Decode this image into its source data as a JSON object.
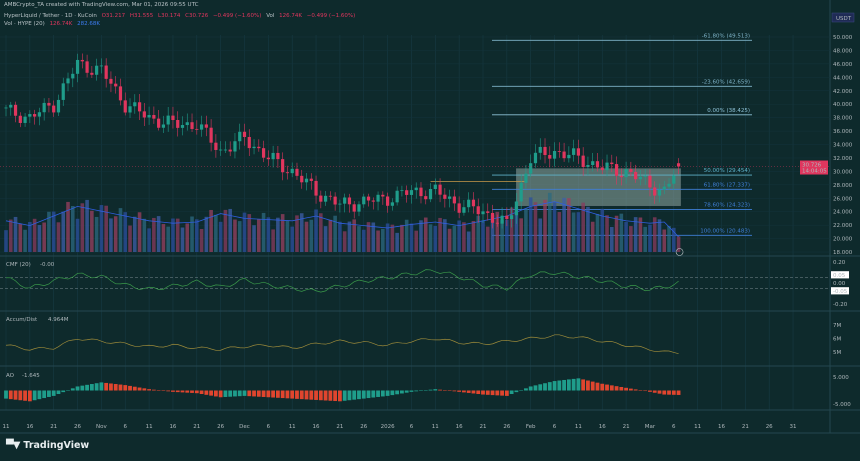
{
  "header": {
    "credit": "AMBCrypto_TA created with TradingView.com, Mar 01, 2026 09:55 UTC",
    "symbol": "HyperLiquid / Tether · 1D · KuCoin",
    "open": "O31.217",
    "high": "H31.555",
    "low": "L30.174",
    "close": "C30.726",
    "change": "−0.499 (−1.60%)",
    "vol_label": "Vol",
    "vol_value": "126.74K",
    "vol_change": "−0.499 (−1.60%)",
    "vol_ma_label": "Vol · HYPE (20)",
    "vol_ma_value1": "126.74K",
    "vol_ma_value2": "282.68K"
  },
  "currency": "USDT",
  "last_price": {
    "value": "30.726",
    "countdown": "14:04:05",
    "color": "#e0365e"
  },
  "colors": {
    "up": "#1f9d8b",
    "down": "#e0365e",
    "background": "#0e2a2c",
    "volume_ma": "#2f5ee0",
    "fib_box": "#8fa7a3"
  },
  "fib_levels": [
    {
      "label": "-61.80% (49.513)",
      "price": 49.513,
      "color": "#7fb3c8"
    },
    {
      "label": "-23.60% (42.659)",
      "price": 42.659,
      "color": "#7fb3c8"
    },
    {
      "label": "0.00% (38.425)",
      "price": 38.425,
      "color": "#8fc3d8"
    },
    {
      "label": "50.00% (29.454)",
      "price": 29.454,
      "color": "#5fb0c8"
    },
    {
      "label": "61.80% (27.337)",
      "price": 27.337,
      "color": "#3f7fd8"
    },
    {
      "label": "78.60% (24.323)",
      "price": 24.323,
      "color": "#3f7fd8"
    },
    {
      "label": "100.00% (20.483)",
      "price": 20.483,
      "color": "#3f7fd8"
    }
  ],
  "indicators": {
    "cmf": {
      "label": "CMF (20)",
      "value": "-0.00",
      "ticks": [
        "0.20",
        "0.05",
        "0.00",
        "-0.05",
        "-0.20"
      ]
    },
    "accum": {
      "label": "Accum/Dist",
      "value": "4.964M",
      "ticks": [
        "7M",
        "6M",
        "5M"
      ]
    },
    "ao": {
      "label": "AO",
      "value": "-1.645",
      "ticks": [
        "5.000",
        "-5.000"
      ]
    }
  },
  "logo": "TradingView",
  "chart_data": {
    "type": "candlestick",
    "title": "",
    "ylim": [
      18,
      50
    ],
    "y_ticks": [
      "50.000",
      "48.000",
      "46.000",
      "44.000",
      "42.000",
      "40.000",
      "38.000",
      "36.000",
      "34.000",
      "32.000",
      "30.000",
      "28.000",
      "26.000",
      "24.000",
      "22.000",
      "20.000",
      "18.000"
    ],
    "x_ticks": [
      "11",
      "16",
      "21",
      "26",
      "Nov",
      "6",
      "11",
      "16",
      "21",
      "26",
      "Dec",
      "6",
      "11",
      "16",
      "21",
      "26",
      "2026",
      "6",
      "11",
      "16",
      "21",
      "26",
      "Feb",
      "6",
      "11",
      "16",
      "21",
      "Mar",
      "6",
      "11",
      "16",
      "21",
      "26",
      "31"
    ],
    "dates": [
      "2025-10-11",
      "2025-10-16",
      "2025-10-21",
      "2025-10-26",
      "2025-10-31",
      "2025-11-05",
      "2025-11-10",
      "2025-11-15",
      "2025-11-20",
      "2025-11-25",
      "2025-11-30",
      "2025-12-05",
      "2025-12-10",
      "2025-12-15",
      "2025-12-20",
      "2025-12-25",
      "2025-12-30",
      "2026-01-04",
      "2026-01-09",
      "2026-01-14",
      "2026-01-19",
      "2026-01-24",
      "2026-01-29",
      "2026-02-03",
      "2026-02-08",
      "2026-02-13",
      "2026-02-18",
      "2026-02-23",
      "2026-02-26",
      "2026-03-01"
    ],
    "close": [
      39,
      38,
      40,
      46,
      45,
      40,
      38,
      37,
      37,
      33,
      35,
      32,
      30,
      27,
      25,
      25.5,
      26,
      27,
      27,
      25,
      24,
      22,
      32,
      33,
      32,
      30.5,
      30,
      28,
      27,
      30.726
    ],
    "volume_k": [
      260,
      220,
      300,
      380,
      340,
      300,
      260,
      240,
      250,
      320,
      280,
      270,
      260,
      300,
      240,
      220,
      200,
      230,
      250,
      220,
      260,
      300,
      380,
      420,
      360,
      300,
      260,
      240,
      250,
      126.74
    ],
    "cmf": [
      0.05,
      -0.05,
      0.02,
      0.08,
      0.06,
      -0.02,
      -0.06,
      -0.03,
      0.01,
      -0.04,
      0.03,
      -0.02,
      -0.05,
      -0.08,
      -0.03,
      0.02,
      0.05,
      0.09,
      0.12,
      0.06,
      -0.02,
      -0.05,
      0.08,
      0.1,
      0.06,
      0.02,
      -0.03,
      -0.06,
      -0.04,
      0.0
    ],
    "accum_dist_m": [
      5.5,
      5.2,
      5.3,
      6.0,
      5.8,
      5.6,
      5.4,
      5.5,
      5.3,
      5.2,
      5.4,
      5.5,
      5.3,
      5.6,
      5.8,
      5.7,
      5.5,
      5.8,
      6.0,
      5.7,
      5.6,
      5.8,
      6.0,
      6.2,
      6.1,
      5.8,
      5.5,
      5.2,
      5.0,
      4.964
    ],
    "ao": [
      -3,
      -4,
      -2,
      1.5,
      3,
      2,
      0.5,
      -0.5,
      -1,
      -2.5,
      -2,
      -2.5,
      -3,
      -3.5,
      -4,
      -3,
      -2,
      -0.5,
      0.5,
      -0.5,
      -1.5,
      -2,
      1.5,
      3.5,
      4.5,
      2.5,
      1,
      -0.5,
      -1.5,
      -1.645
    ]
  }
}
